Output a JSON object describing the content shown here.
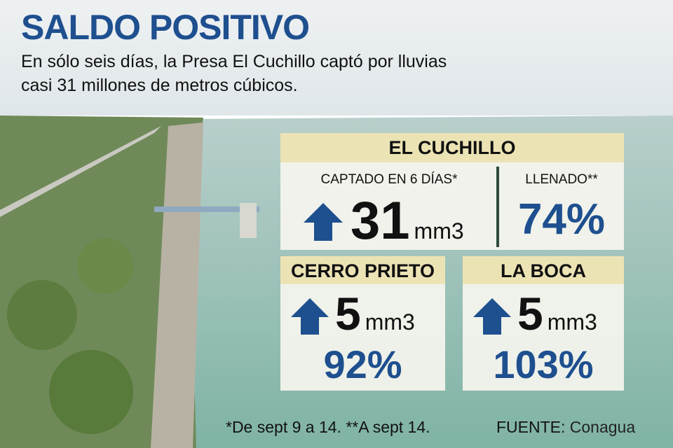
{
  "header": {
    "title": "SALDO POSITIVO",
    "subtitle": [
      "En sólo seis días, la Presa El Cuchillo captó por lluvias",
      "casi 31 millones de metros cúbicos."
    ]
  },
  "cards": [
    {
      "name": "EL CUCHILLO",
      "captured_label": "CAPTADO EN 6 DÍAS*",
      "captured_value": "31",
      "unit": "mm3",
      "filled_label": "LLENADO**",
      "filled_value": "74%"
    },
    {
      "name": "CERRO PRIETO",
      "captured_value": "5",
      "unit": "mm3",
      "filled_value": "92%"
    },
    {
      "name": "LA BOCA",
      "captured_value": "5",
      "unit": "mm3",
      "filled_value": "103%"
    }
  ],
  "footer": {
    "note": "*De sept 9 a 14. **A sept 14.",
    "source_label": "FUENTE:",
    "source": "Conagua"
  }
}
